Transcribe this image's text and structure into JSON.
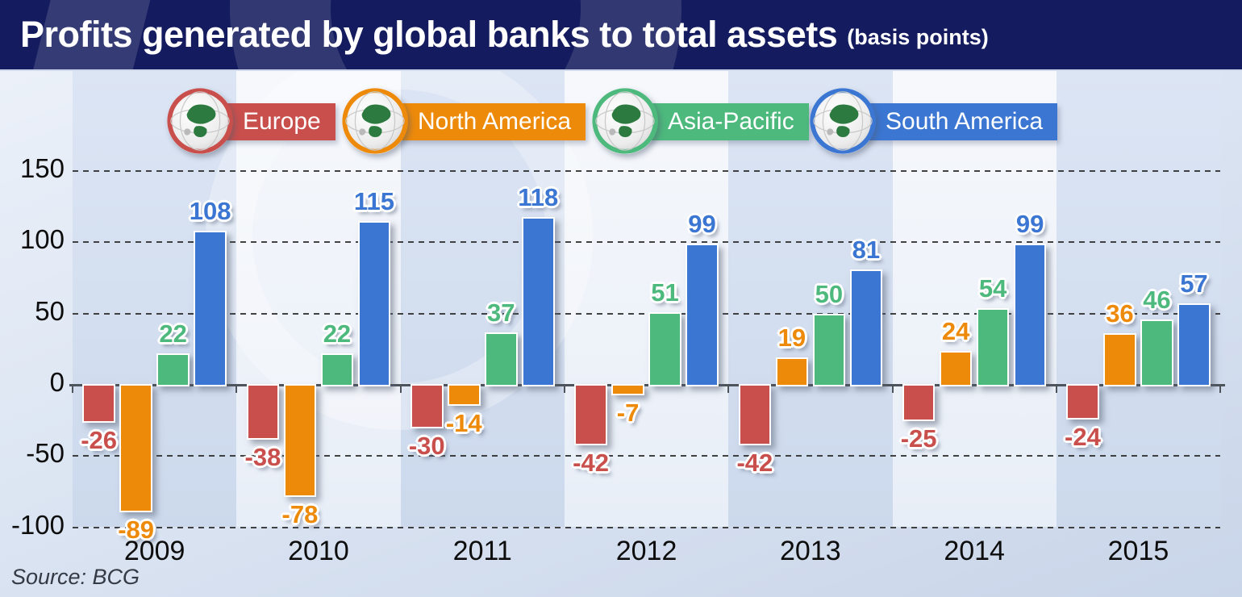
{
  "header": {
    "title": "Profits generated by global banks to total assets",
    "subtitle": "(basis points)"
  },
  "legend": {
    "items": [
      {
        "label": "Europe",
        "color": "#c94f4c",
        "icon": "globe-europe-icon"
      },
      {
        "label": "North America",
        "color": "#ee8a0a",
        "icon": "globe-north-america-icon"
      },
      {
        "label": "Asia-Pacific",
        "color": "#4db97d",
        "icon": "globe-asia-pacific-icon"
      },
      {
        "label": "South America",
        "color": "#3b76d2",
        "icon": "globe-south-america-icon"
      }
    ]
  },
  "chart_data": {
    "type": "bar",
    "title": "Profits generated by global banks to total assets (basis points)",
    "categories": [
      "2009",
      "2010",
      "2011",
      "2012",
      "2013",
      "2014",
      "2015"
    ],
    "series": [
      {
        "name": "Europe",
        "color": "#c94f4c",
        "values": [
          -26,
          -38,
          -30,
          -42,
          -42,
          -25,
          -24
        ]
      },
      {
        "name": "North America",
        "color": "#ee8a0a",
        "values": [
          -89,
          -78,
          -14,
          -7,
          19,
          24,
          36
        ]
      },
      {
        "name": "Asia-Pacific",
        "color": "#4db97d",
        "values": [
          22,
          22,
          37,
          51,
          50,
          54,
          46
        ]
      },
      {
        "name": "South America",
        "color": "#3b76d2",
        "values": [
          108,
          115,
          118,
          99,
          81,
          99,
          57
        ]
      }
    ],
    "xlabel": "",
    "ylabel": "",
    "ylim": [
      -100,
      150
    ],
    "yticks": [
      150,
      100,
      50,
      0,
      -50,
      -100
    ],
    "grid": "horizontal-dashed",
    "legend_position": "top"
  },
  "source": "Source: BCG"
}
